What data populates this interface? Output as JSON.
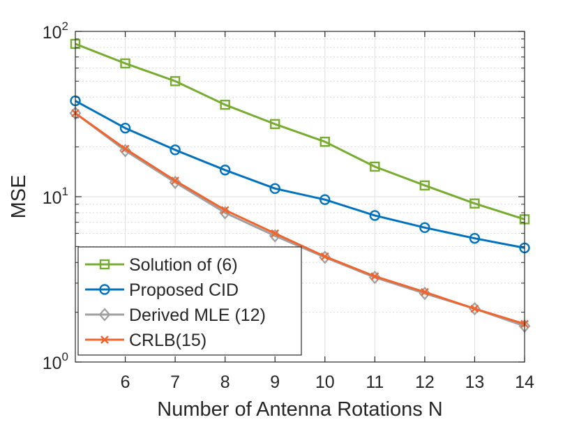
{
  "chart_data": {
    "type": "line",
    "title": "",
    "xlabel": "Number of Antenna Rotations N",
    "ylabel": "MSE",
    "xlim": [
      5,
      14
    ],
    "ylim": [
      1,
      100
    ],
    "yscale": "log",
    "grid": true,
    "legend_position": "bottom-left",
    "x": [
      5,
      6,
      7,
      8,
      9,
      10,
      11,
      12,
      13,
      14
    ],
    "x_ticks": [
      6,
      7,
      8,
      9,
      10,
      11,
      12,
      13,
      14
    ],
    "x_tick_labels": [
      "6",
      "7",
      "8",
      "9",
      "10",
      "11",
      "12",
      "13",
      "14"
    ],
    "y_ticks": [
      {
        "value": 1,
        "base": "10",
        "exp": "0"
      },
      {
        "value": 10,
        "base": "10",
        "exp": "1"
      },
      {
        "value": 100,
        "base": "10",
        "exp": "2"
      }
    ],
    "series": [
      {
        "name": "Solution of (6)",
        "color": "#77ac30",
        "marker": "square",
        "values": [
          84,
          64,
          50,
          36,
          27.5,
          21.5,
          15.2,
          11.7,
          9.1,
          7.3
        ]
      },
      {
        "name": "Proposed CID",
        "color": "#0072bd",
        "marker": "circle",
        "values": [
          38,
          26,
          19.2,
          14.5,
          11.2,
          9.6,
          7.7,
          6.5,
          5.6,
          4.9
        ]
      },
      {
        "name": "Derived MLE (12)",
        "color": "#a0a0a0",
        "marker": "diamond",
        "values": [
          32,
          19,
          12.2,
          8.0,
          5.8,
          4.3,
          3.25,
          2.6,
          2.1,
          1.65
        ]
      },
      {
        "name": "CRLB(15)",
        "color": "#f0642d",
        "marker": "x",
        "values": [
          32,
          19.5,
          12.5,
          8.3,
          6.0,
          4.35,
          3.3,
          2.65,
          2.1,
          1.7
        ]
      }
    ]
  }
}
